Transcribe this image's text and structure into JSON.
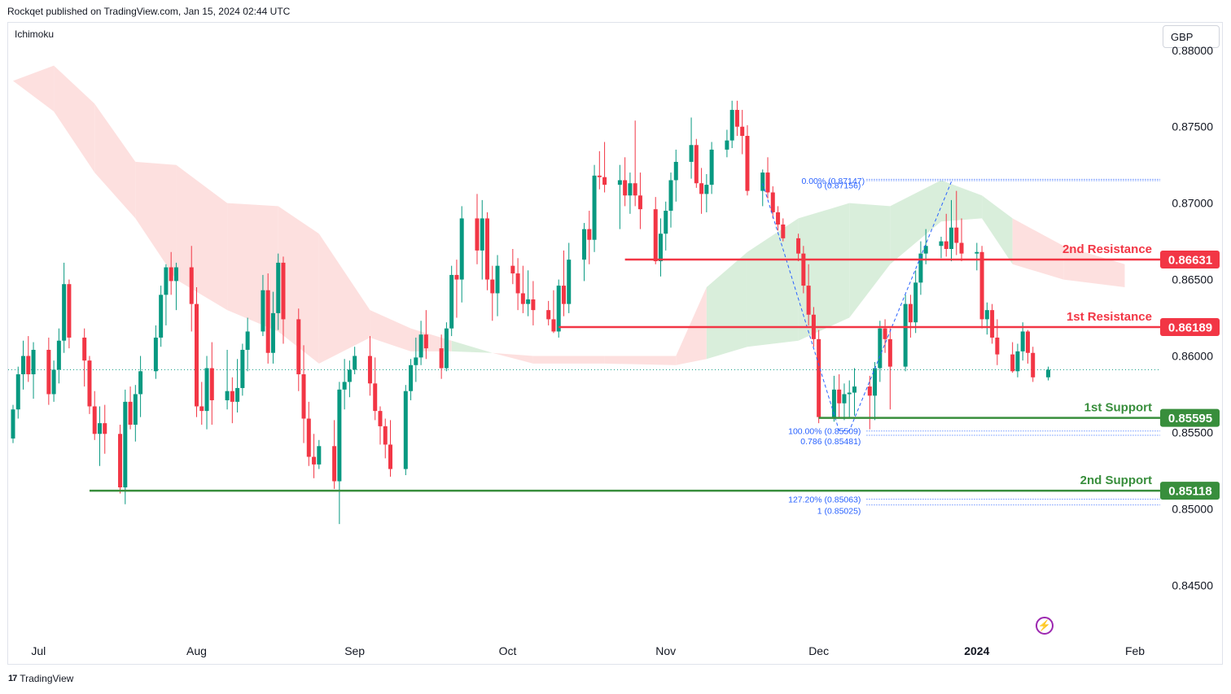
{
  "header": {
    "publisher": "Rockqet published on TradingView.com, Jan 15, 2024 02:44 UTC"
  },
  "indicator": "Ichimoku",
  "currency": "GBP",
  "footer": {
    "brand": "TradingView",
    "logo_icon": "tradingview-logo-icon"
  },
  "colors": {
    "up": "#089981",
    "down": "#f23645",
    "resistance": "#f23645",
    "support": "#388e3c",
    "cloud_bull": "#d9eedb",
    "cloud_bear": "#fde0df",
    "fib": "#2962ff"
  },
  "chart_data": {
    "type": "candlestick",
    "title": "",
    "xlabel": "",
    "ylabel": "",
    "ylim": [
      0.8415,
      0.8818
    ],
    "y_ticks": [
      "0.88000",
      "0.87500",
      "0.87000",
      "0.86500",
      "0.86000",
      "0.85500",
      "0.85000",
      "0.84500"
    ],
    "x_ticks": [
      "Jul",
      "Aug",
      "Sep",
      "Oct",
      "Nov",
      "Dec",
      "2024",
      "Feb"
    ],
    "levels": [
      {
        "label": "2nd Resistance",
        "price": "0.86631",
        "kind": "resistance",
        "from_date": "2023-10-24"
      },
      {
        "label": "1st Resistance",
        "price": "0.86189",
        "kind": "resistance",
        "from_date": "2023-10-11"
      },
      {
        "label": "1st Support",
        "price": "0.85595",
        "kind": "support",
        "from_date": "2023-12-01"
      },
      {
        "label": "2nd Support",
        "price": "0.85118",
        "kind": "support",
        "from_date": "2023-07-11"
      }
    ],
    "fib_labels": [
      {
        "text": "0.00% (0.87147)",
        "price": 0.87147
      },
      {
        "text": "0 (0.87156)",
        "price": 0.87156
      },
      {
        "text": "100.00% (0.85509)",
        "price": 0.85509
      },
      {
        "text": "0.786 (0.85481)",
        "price": 0.85481
      },
      {
        "text": "127.20% (0.85063)",
        "price": 0.85063
      },
      {
        "text": "1 (0.85025)",
        "price": 0.85025
      }
    ],
    "last_close": 0.8591,
    "candles": [
      [
        "2023-06-26",
        0.8546,
        0.8568,
        0.8543,
        0.8565
      ],
      [
        "2023-06-27",
        0.8565,
        0.8593,
        0.8559,
        0.8588
      ],
      [
        "2023-06-28",
        0.8588,
        0.861,
        0.8578,
        0.86
      ],
      [
        "2023-06-29",
        0.86,
        0.8613,
        0.8583,
        0.8588
      ],
      [
        "2023-06-30",
        0.8588,
        0.8609,
        0.8572,
        0.8604
      ],
      [
        "2023-07-03",
        0.8604,
        0.8612,
        0.8568,
        0.8575
      ],
      [
        "2023-07-04",
        0.8575,
        0.8597,
        0.857,
        0.8591
      ],
      [
        "2023-07-05",
        0.8591,
        0.8618,
        0.8582,
        0.861
      ],
      [
        "2023-07-06",
        0.861,
        0.8661,
        0.8602,
        0.8647
      ],
      [
        "2023-07-07",
        0.8647,
        0.865,
        0.8605,
        0.8612
      ],
      [
        "2023-07-10",
        0.8612,
        0.8618,
        0.858,
        0.8597
      ],
      [
        "2023-07-11",
        0.8597,
        0.86,
        0.8562,
        0.8567
      ],
      [
        "2023-07-12",
        0.8567,
        0.8577,
        0.8545,
        0.8549
      ],
      [
        "2023-07-13",
        0.8549,
        0.8567,
        0.8528,
        0.8556
      ],
      [
        "2023-07-14",
        0.8556,
        0.8568,
        0.8536,
        0.8549
      ],
      [
        "2023-07-17",
        0.8549,
        0.8555,
        0.851,
        0.8514
      ],
      [
        "2023-07-18",
        0.8514,
        0.8578,
        0.8503,
        0.857
      ],
      [
        "2023-07-19",
        0.857,
        0.858,
        0.8552,
        0.8555
      ],
      [
        "2023-07-20",
        0.8555,
        0.8581,
        0.8544,
        0.8575
      ],
      [
        "2023-07-21",
        0.8575,
        0.86,
        0.856,
        0.859
      ],
      [
        "2023-07-24",
        0.859,
        0.862,
        0.8585,
        0.8612
      ],
      [
        "2023-07-25",
        0.8612,
        0.8646,
        0.8606,
        0.864
      ],
      [
        "2023-07-26",
        0.864,
        0.866,
        0.862,
        0.8658
      ],
      [
        "2023-07-27",
        0.8658,
        0.8668,
        0.864,
        0.8649
      ],
      [
        "2023-07-28",
        0.8649,
        0.8661,
        0.863,
        0.8658
      ],
      [
        "2023-07-31",
        0.8658,
        0.8672,
        0.8616,
        0.8634
      ],
      [
        "2023-08-01",
        0.8634,
        0.8645,
        0.856,
        0.8567
      ],
      [
        "2023-08-02",
        0.8567,
        0.8583,
        0.8555,
        0.8564
      ],
      [
        "2023-08-03",
        0.8564,
        0.86,
        0.8552,
        0.8592
      ],
      [
        "2023-08-04",
        0.8592,
        0.8609,
        0.8555,
        0.8571
      ],
      [
        "2023-08-07",
        0.8571,
        0.8604,
        0.8565,
        0.8577
      ],
      [
        "2023-08-08",
        0.8577,
        0.8586,
        0.8556,
        0.857
      ],
      [
        "2023-08-09",
        0.857,
        0.8598,
        0.8563,
        0.8579
      ],
      [
        "2023-08-10",
        0.8579,
        0.8608,
        0.8574,
        0.8604
      ],
      [
        "2023-08-11",
        0.8604,
        0.8625,
        0.859,
        0.8616
      ],
      [
        "2023-08-14",
        0.8616,
        0.8653,
        0.8613,
        0.8643
      ],
      [
        "2023-08-15",
        0.8643,
        0.8654,
        0.8595,
        0.8602
      ],
      [
        "2023-08-16",
        0.8602,
        0.8642,
        0.8595,
        0.8628
      ],
      [
        "2023-08-17",
        0.8628,
        0.8667,
        0.8617,
        0.8661
      ],
      [
        "2023-08-18",
        0.8661,
        0.8665,
        0.8608,
        0.8624
      ],
      [
        "2023-08-21",
        0.8624,
        0.8631,
        0.8577,
        0.8588
      ],
      [
        "2023-08-22",
        0.8588,
        0.8607,
        0.8543,
        0.8559
      ],
      [
        "2023-08-23",
        0.8559,
        0.857,
        0.8528,
        0.8534
      ],
      [
        "2023-08-24",
        0.8534,
        0.8549,
        0.852,
        0.8529
      ],
      [
        "2023-08-25",
        0.8529,
        0.8545,
        0.8526,
        0.8541
      ],
      [
        "2023-08-28",
        0.8541,
        0.8558,
        0.8513,
        0.8518
      ],
      [
        "2023-08-29",
        0.8518,
        0.8583,
        0.849,
        0.8578
      ],
      [
        "2023-08-30",
        0.8578,
        0.8598,
        0.8565,
        0.8583
      ],
      [
        "2023-08-31",
        0.8583,
        0.8597,
        0.8573,
        0.8591
      ],
      [
        "2023-09-01",
        0.8591,
        0.8606,
        0.8588,
        0.86
      ],
      [
        "2023-09-04",
        0.86,
        0.8613,
        0.8574,
        0.8582
      ],
      [
        "2023-09-05",
        0.8582,
        0.8599,
        0.8558,
        0.8564
      ],
      [
        "2023-09-06",
        0.8564,
        0.8567,
        0.8542,
        0.8554
      ],
      [
        "2023-09-07",
        0.8554,
        0.8559,
        0.8533,
        0.8542
      ],
      [
        "2023-09-08",
        0.8542,
        0.8558,
        0.8521,
        0.8526
      ],
      [
        "2023-09-11",
        0.8526,
        0.8581,
        0.8522,
        0.8577
      ],
      [
        "2023-09-12",
        0.8577,
        0.8598,
        0.8571,
        0.8594
      ],
      [
        "2023-09-13",
        0.8594,
        0.8612,
        0.8583,
        0.8599
      ],
      [
        "2023-09-14",
        0.8599,
        0.8623,
        0.8594,
        0.8614
      ],
      [
        "2023-09-15",
        0.8614,
        0.863,
        0.8598,
        0.8605
      ],
      [
        "2023-09-18",
        0.8605,
        0.8614,
        0.8585,
        0.8592
      ],
      [
        "2023-09-19",
        0.8592,
        0.8622,
        0.859,
        0.8618
      ],
      [
        "2023-09-20",
        0.8618,
        0.8659,
        0.8613,
        0.8653
      ],
      [
        "2023-09-21",
        0.8653,
        0.8663,
        0.8625,
        0.865
      ],
      [
        "2023-09-22",
        0.865,
        0.8698,
        0.8635,
        0.869
      ],
      [
        "2023-09-25",
        0.869,
        0.8706,
        0.866,
        0.8669
      ],
      [
        "2023-09-26",
        0.8669,
        0.8702,
        0.865,
        0.869
      ],
      [
        "2023-09-27",
        0.869,
        0.8694,
        0.8643,
        0.865
      ],
      [
        "2023-09-28",
        0.865,
        0.8659,
        0.8623,
        0.8641
      ],
      [
        "2023-09-29",
        0.8641,
        0.8666,
        0.8626,
        0.8659
      ],
      [
        "2023-10-02",
        0.8659,
        0.867,
        0.8647,
        0.8654
      ],
      [
        "2023-10-03",
        0.8654,
        0.8664,
        0.863,
        0.8641
      ],
      [
        "2023-10-04",
        0.8641,
        0.8659,
        0.8628,
        0.8634
      ],
      [
        "2023-10-05",
        0.8634,
        0.8656,
        0.8626,
        0.8637
      ],
      [
        "2023-10-06",
        0.8637,
        0.8649,
        0.862,
        0.863
      ],
      [
        "2023-10-09",
        0.863,
        0.8636,
        0.862,
        0.8624
      ],
      [
        "2023-10-10",
        0.8624,
        0.8643,
        0.8615,
        0.8616
      ],
      [
        "2023-10-11",
        0.8616,
        0.865,
        0.8612,
        0.8646
      ],
      [
        "2023-10-12",
        0.8646,
        0.8669,
        0.8626,
        0.8634
      ],
      [
        "2023-10-13",
        0.8634,
        0.8674,
        0.8628,
        0.8663
      ],
      [
        "2023-10-16",
        0.8663,
        0.8687,
        0.8649,
        0.8683
      ],
      [
        "2023-10-17",
        0.8683,
        0.8695,
        0.866,
        0.8676
      ],
      [
        "2023-10-18",
        0.8676,
        0.8725,
        0.8668,
        0.8718
      ],
      [
        "2023-10-19",
        0.8718,
        0.8734,
        0.8709,
        0.8717
      ],
      [
        "2023-10-20",
        0.8717,
        0.874,
        0.8707,
        0.8712
      ],
      [
        "2023-10-23",
        0.8712,
        0.8725,
        0.8683,
        0.8715
      ],
      [
        "2023-10-24",
        0.8715,
        0.873,
        0.8698,
        0.8705
      ],
      [
        "2023-10-25",
        0.8705,
        0.872,
        0.8693,
        0.8713
      ],
      [
        "2023-10-26",
        0.8713,
        0.8754,
        0.8698,
        0.8705
      ],
      [
        "2023-10-27",
        0.8705,
        0.872,
        0.8683,
        0.8696
      ],
      [
        "2023-10-30",
        0.8696,
        0.8704,
        0.866,
        0.8662
      ],
      [
        "2023-10-31",
        0.8662,
        0.869,
        0.8652,
        0.868
      ],
      [
        "2023-11-01",
        0.868,
        0.8701,
        0.8669,
        0.8695
      ],
      [
        "2023-11-02",
        0.8695,
        0.872,
        0.8684,
        0.8715
      ],
      [
        "2023-11-03",
        0.8715,
        0.8735,
        0.8701,
        0.8727
      ],
      [
        "2023-11-06",
        0.8727,
        0.8756,
        0.8716,
        0.8738
      ],
      [
        "2023-11-07",
        0.8738,
        0.8742,
        0.871,
        0.8713
      ],
      [
        "2023-11-08",
        0.8713,
        0.8723,
        0.8693,
        0.8706
      ],
      [
        "2023-11-09",
        0.8706,
        0.8719,
        0.8694,
        0.8712
      ],
      [
        "2023-11-10",
        0.8712,
        0.874,
        0.8706,
        0.8735
      ],
      [
        "2023-11-13",
        0.8735,
        0.8748,
        0.873,
        0.8741
      ],
      [
        "2023-11-14",
        0.8741,
        0.8767,
        0.8736,
        0.8761
      ],
      [
        "2023-11-15",
        0.8761,
        0.8767,
        0.8744,
        0.875
      ],
      [
        "2023-11-16",
        0.875,
        0.8761,
        0.8732,
        0.8744
      ],
      [
        "2023-11-17",
        0.8744,
        0.8751,
        0.8705,
        0.8708
      ],
      [
        "2023-11-20",
        0.8708,
        0.8722,
        0.8698,
        0.872
      ],
      [
        "2023-11-21",
        0.872,
        0.873,
        0.8703,
        0.8707
      ],
      [
        "2023-11-22",
        0.8707,
        0.8711,
        0.869,
        0.8694
      ],
      [
        "2023-11-23",
        0.8694,
        0.8698,
        0.8682,
        0.8686
      ],
      [
        "2023-11-24",
        0.8686,
        0.869,
        0.8675,
        0.8677
      ],
      [
        "2023-11-27",
        0.8677,
        0.868,
        0.8662,
        0.8667
      ],
      [
        "2023-11-28",
        0.8667,
        0.8672,
        0.8641,
        0.8646
      ],
      [
        "2023-11-29",
        0.8646,
        0.866,
        0.862,
        0.8627
      ],
      [
        "2023-11-30",
        0.8627,
        0.8632,
        0.8606,
        0.8611
      ],
      [
        "2023-12-01",
        0.8611,
        0.8617,
        0.8556,
        0.856
      ],
      [
        "2023-12-04",
        0.856,
        0.8587,
        0.8557,
        0.8578
      ],
      [
        "2023-12-05",
        0.8578,
        0.8588,
        0.856,
        0.8569
      ],
      [
        "2023-12-06",
        0.8569,
        0.8582,
        0.8558,
        0.8575
      ],
      [
        "2023-12-07",
        0.8575,
        0.8584,
        0.8559,
        0.8576
      ],
      [
        "2023-12-08",
        0.8576,
        0.8592,
        0.8561,
        0.858
      ],
      [
        "2023-12-11",
        0.858,
        0.8587,
        0.8552,
        0.8574
      ],
      [
        "2023-12-12",
        0.8574,
        0.8596,
        0.8558,
        0.8592
      ],
      [
        "2023-12-13",
        0.8592,
        0.8623,
        0.8583,
        0.8618
      ],
      [
        "2023-12-14",
        0.8618,
        0.8624,
        0.8602,
        0.8611
      ],
      [
        "2023-12-15",
        0.8611,
        0.8618,
        0.8565,
        0.8593
      ],
      [
        "2023-12-18",
        0.8593,
        0.864,
        0.859,
        0.8634
      ],
      [
        "2023-12-19",
        0.8634,
        0.864,
        0.8612,
        0.8622
      ],
      [
        "2023-12-20",
        0.8622,
        0.8656,
        0.8615,
        0.8648
      ],
      [
        "2023-12-21",
        0.8648,
        0.8675,
        0.864,
        0.8667
      ],
      [
        "2023-12-22",
        0.8667,
        0.8683,
        0.866,
        0.8672
      ],
      [
        "2023-12-25",
        0.8672,
        0.8678,
        0.8664,
        0.8675
      ],
      [
        "2023-12-26",
        0.8675,
        0.8693,
        0.8665,
        0.867
      ],
      [
        "2023-12-27",
        0.867,
        0.8702,
        0.8662,
        0.8684
      ],
      [
        "2023-12-28",
        0.8684,
        0.8708,
        0.8666,
        0.8674
      ],
      [
        "2023-12-29",
        0.8674,
        0.869,
        0.8662,
        0.8667
      ],
      [
        "2024-01-01",
        0.8667,
        0.8674,
        0.8656,
        0.8668
      ],
      [
        "2024-01-02",
        0.8668,
        0.8672,
        0.8618,
        0.8624
      ],
      [
        "2024-01-03",
        0.8624,
        0.8635,
        0.8614,
        0.863
      ],
      [
        "2024-01-04",
        0.863,
        0.8634,
        0.8608,
        0.8612
      ],
      [
        "2024-01-05",
        0.8612,
        0.8624,
        0.8594,
        0.8601
      ],
      [
        "2024-01-08",
        0.8601,
        0.8609,
        0.8589,
        0.859
      ],
      [
        "2024-01-09",
        0.859,
        0.8608,
        0.8586,
        0.8603
      ],
      [
        "2024-01-10",
        0.8603,
        0.8622,
        0.8597,
        0.8616
      ],
      [
        "2024-01-11",
        0.8616,
        0.8617,
        0.8595,
        0.8602
      ],
      [
        "2024-01-12",
        0.8602,
        0.8606,
        0.8583,
        0.8586
      ],
      [
        "2024-01-15",
        0.8586,
        0.8593,
        0.8584,
        0.8591
      ]
    ],
    "cloud": [
      [
        "2023-06-26",
        0.878,
        0.878,
        "bear"
      ],
      [
        "2023-07-04",
        0.879,
        0.876,
        "bear"
      ],
      [
        "2023-07-12",
        0.8765,
        0.872,
        "bear"
      ],
      [
        "2023-07-20",
        0.8727,
        0.869,
        "bear"
      ],
      [
        "2023-07-28",
        0.8725,
        0.865,
        "bear"
      ],
      [
        "2023-08-07",
        0.87,
        0.863,
        "bear"
      ],
      [
        "2023-08-17",
        0.8698,
        0.8616,
        "bear"
      ],
      [
        "2023-08-25",
        0.868,
        0.8595,
        "bear"
      ],
      [
        "2023-09-04",
        0.863,
        0.8612,
        "bear"
      ],
      [
        "2023-09-12",
        0.8618,
        0.8603,
        "bear"
      ],
      [
        "2023-09-20",
        0.861,
        0.8603,
        "bull"
      ],
      [
        "2023-09-28",
        0.8602,
        0.8602,
        "bear"
      ],
      [
        "2023-10-06",
        0.86,
        0.8595,
        "bear"
      ],
      [
        "2023-10-20",
        0.86,
        0.8595,
        "bear"
      ],
      [
        "2023-11-03",
        0.86,
        0.8594,
        "bear"
      ],
      [
        "2023-11-09",
        0.8645,
        0.8598,
        "bull"
      ],
      [
        "2023-11-17",
        0.8668,
        0.8606,
        "bull"
      ],
      [
        "2023-11-27",
        0.869,
        0.861,
        "bull"
      ],
      [
        "2023-12-07",
        0.87,
        0.8625,
        "bull"
      ],
      [
        "2023-12-15",
        0.8698,
        0.866,
        "bull"
      ],
      [
        "2023-12-25",
        0.8715,
        0.8688,
        "bull"
      ],
      [
        "2024-01-02",
        0.8705,
        0.869,
        "bull"
      ],
      [
        "2024-01-08",
        0.869,
        0.866,
        "bear"
      ],
      [
        "2024-01-18",
        0.8672,
        0.865,
        "bear"
      ],
      [
        "2024-01-30",
        0.866,
        0.8645,
        "bear"
      ]
    ]
  }
}
